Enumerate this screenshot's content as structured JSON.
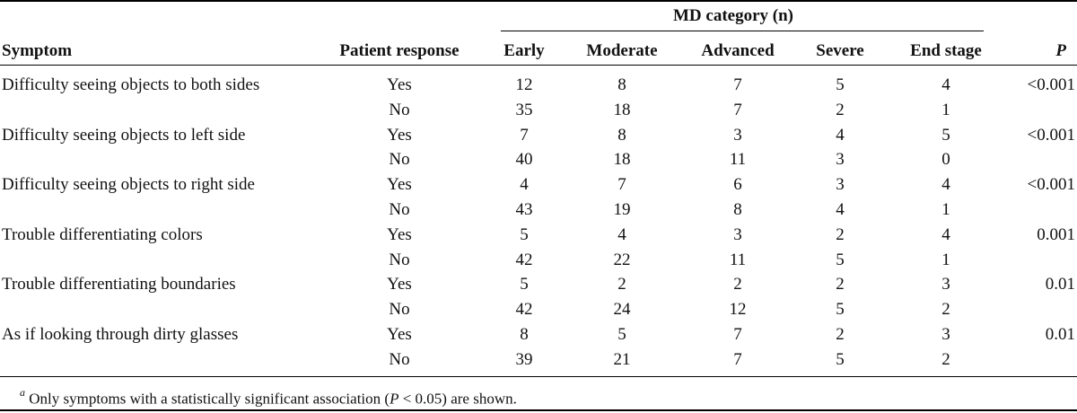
{
  "header": {
    "group_label": "MD category (n)",
    "symptom": "Symptom",
    "response": "Patient response",
    "early": "Early",
    "moderate": "Moderate",
    "advanced": "Advanced",
    "severe": "Severe",
    "end_stage": "End stage",
    "p": "P"
  },
  "rows": [
    {
      "symptom": "Difficulty seeing objects to both sides",
      "yes": [
        "12",
        "8",
        "7",
        "5",
        "4"
      ],
      "no": [
        "35",
        "18",
        "7",
        "2",
        "1"
      ],
      "p": "<0.001"
    },
    {
      "symptom": "Difficulty seeing objects to left side",
      "yes": [
        "7",
        "8",
        "3",
        "4",
        "5"
      ],
      "no": [
        "40",
        "18",
        "11",
        "3",
        "0"
      ],
      "p": "<0.001"
    },
    {
      "symptom": "Difficulty seeing objects to right side",
      "yes": [
        "4",
        "7",
        "6",
        "3",
        "4"
      ],
      "no": [
        "43",
        "19",
        "8",
        "4",
        "1"
      ],
      "p": "<0.001"
    },
    {
      "symptom": "Trouble differentiating colors",
      "yes": [
        "5",
        "4",
        "3",
        "2",
        "4"
      ],
      "no": [
        "42",
        "22",
        "11",
        "5",
        "1"
      ],
      "p": "0.001"
    },
    {
      "symptom": "Trouble differentiating boundaries",
      "yes": [
        "5",
        "2",
        "2",
        "2",
        "3"
      ],
      "no": [
        "42",
        "24",
        "12",
        "5",
        "2"
      ],
      "p": "0.01"
    },
    {
      "symptom": "As if looking through dirty glasses",
      "yes": [
        "8",
        "5",
        "7",
        "2",
        "3"
      ],
      "no": [
        "39",
        "21",
        "7",
        "5",
        "2"
      ],
      "p": "0.01"
    }
  ],
  "response_labels": {
    "yes": "Yes",
    "no": "No"
  },
  "footnote": {
    "marker": "a",
    "text_before": "Only symptoms with a statistically significant association (",
    "p_symbol": "P",
    "text_after": " < 0.05) are shown."
  }
}
